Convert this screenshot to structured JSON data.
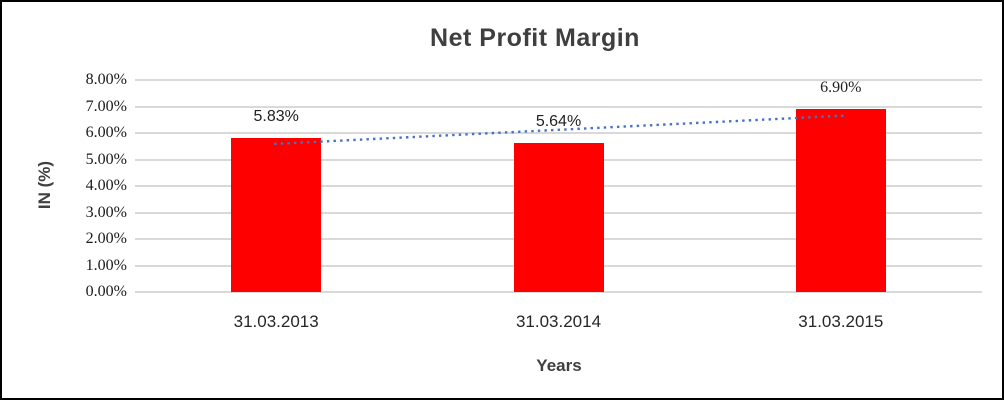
{
  "chart_data": {
    "type": "bar",
    "title": "Net Profit Margin",
    "xlabel": "Years",
    "ylabel": "IN (%)",
    "categories": [
      "31.03.2013",
      "31.03.2014",
      "31.03.2015"
    ],
    "values": [
      5.83,
      5.64,
      6.9
    ],
    "data_labels": [
      "5.83%",
      "5.64%",
      "6.90%"
    ],
    "y_ticks": [
      "0.00%",
      "1.00%",
      "2.00%",
      "3.00%",
      "4.00%",
      "5.00%",
      "6.00%",
      "7.00%",
      "8.00%"
    ],
    "ylim": [
      0,
      8
    ],
    "grid": true,
    "legend": false,
    "bar_color": "#ff0000",
    "gridline_color": "#d9d9d9",
    "trendline": {
      "type": "linear",
      "style": "dotted",
      "color": "#4472c4"
    }
  }
}
